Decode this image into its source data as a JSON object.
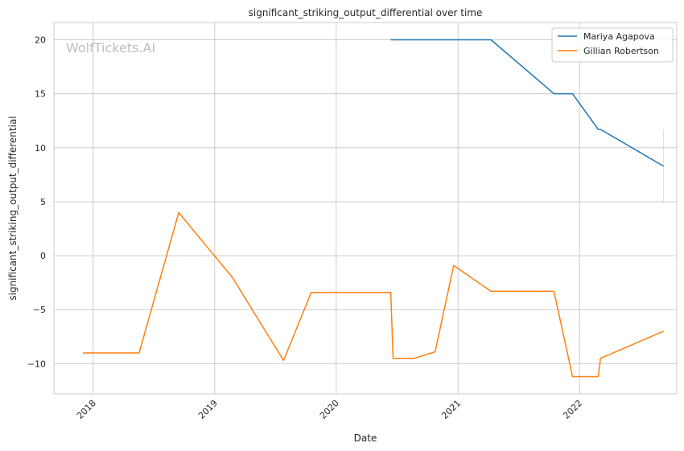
{
  "chart_data": {
    "type": "line",
    "title": "significant_striking_output_differential over time",
    "xlabel": "Date",
    "ylabel": "significant_striking_output_differential",
    "watermark": "WolfTickets.AI",
    "xlim": [
      "2017-09-05",
      "2022-10-20"
    ],
    "ylim": [
      -12.8,
      21.6
    ],
    "yticks": [
      -10,
      -5,
      0,
      5,
      10,
      15,
      20
    ],
    "xticks": [
      {
        "date": "2018-01-01",
        "label": "2018"
      },
      {
        "date": "2019-01-01",
        "label": "2019"
      },
      {
        "date": "2020-01-01",
        "label": "2020"
      },
      {
        "date": "2021-01-01",
        "label": "2021"
      },
      {
        "date": "2022-01-01",
        "label": "2022"
      }
    ],
    "grid": true,
    "legend_position": "top-right",
    "series": [
      {
        "name": "Mariya Agapova",
        "color": "#1f77b4",
        "points": [
          {
            "x": "2020-06-13",
            "y": 20
          },
          {
            "x": "2021-04-10",
            "y": 20
          },
          {
            "x": "2021-10-16",
            "y": 15
          },
          {
            "x": "2021-12-11",
            "y": 15
          },
          {
            "x": "2022-02-26",
            "y": 11.7
          },
          {
            "x": "2022-03-05",
            "y": 11.7
          },
          {
            "x": "2022-09-10",
            "y": 8.3
          }
        ],
        "errorbar": {
          "x": "2022-09-10",
          "low": 4.9,
          "high": 11.7
        }
      },
      {
        "name": "Gillian Robertson",
        "color": "#ff7f0e",
        "points": [
          {
            "x": "2017-12-01",
            "y": -9
          },
          {
            "x": "2018-05-19",
            "y": -9
          },
          {
            "x": "2018-09-15",
            "y": 4
          },
          {
            "x": "2019-02-23",
            "y": -2
          },
          {
            "x": "2019-07-27",
            "y": -9.7
          },
          {
            "x": "2019-10-18",
            "y": -3.4
          },
          {
            "x": "2020-06-13",
            "y": -3.4
          },
          {
            "x": "2020-06-20",
            "y": -9.5
          },
          {
            "x": "2020-08-22",
            "y": -9.5
          },
          {
            "x": "2020-10-24",
            "y": -8.9
          },
          {
            "x": "2020-12-19",
            "y": -0.9
          },
          {
            "x": "2021-04-10",
            "y": -3.3
          },
          {
            "x": "2021-10-16",
            "y": -3.3
          },
          {
            "x": "2021-12-11",
            "y": -11.2
          },
          {
            "x": "2022-02-26",
            "y": -11.2
          },
          {
            "x": "2022-03-05",
            "y": -9.5
          },
          {
            "x": "2022-09-10",
            "y": -7
          }
        ]
      }
    ]
  }
}
